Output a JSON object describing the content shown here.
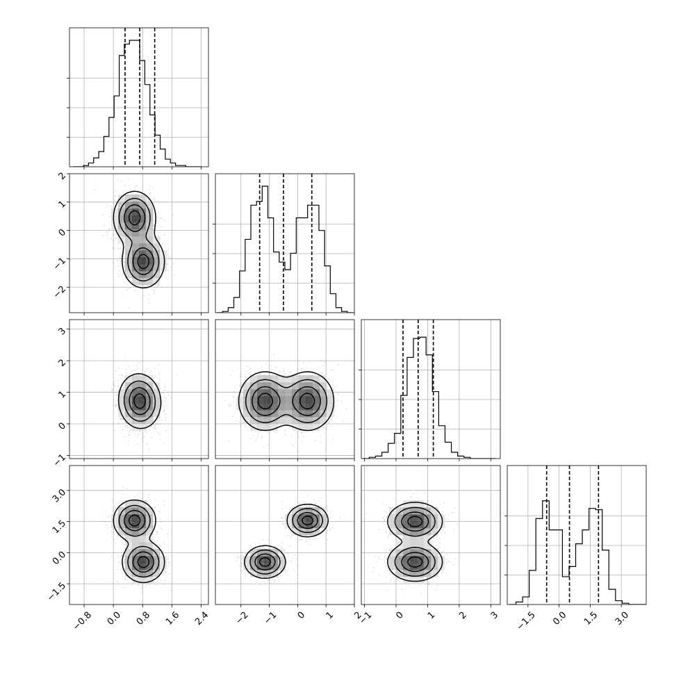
{
  "chart_data": {
    "type": "corner",
    "grid": true,
    "n_params": 4,
    "params": [
      {
        "range": [
          -1.2,
          2.6
        ],
        "ticks": [
          -0.8,
          0.0,
          0.8,
          1.6,
          2.4
        ],
        "tick_labels": [
          "−0.8",
          "0.0",
          "0.8",
          "1.6",
          "2.4"
        ]
      },
      {
        "range": [
          -2.9,
          2.0
        ],
        "ticks": [
          -2,
          -1,
          0,
          1,
          2
        ],
        "tick_labels": [
          "−2",
          "−1",
          "0",
          "1",
          "2"
        ]
      },
      {
        "range": [
          -1.1,
          3.3
        ],
        "ticks": [
          -1,
          0,
          1,
          2,
          3
        ],
        "tick_labels": [
          "−1",
          "0",
          "1",
          "2",
          "3"
        ]
      },
      {
        "range": [
          -2.5,
          4.2
        ],
        "ticks": [
          -1.5,
          0.0,
          1.5,
          3.0
        ],
        "tick_labels": [
          "−1.5",
          "0.0",
          "1.5",
          "3.0"
        ]
      }
    ],
    "quantiles": [
      [
        0.32,
        0.72,
        1.13
      ],
      [
        -1.34,
        -0.5,
        0.5
      ],
      [
        0.22,
        0.7,
        1.18
      ],
      [
        -0.6,
        0.5,
        1.9
      ]
    ],
    "histograms": [
      {
        "x_start": -1.1,
        "bin_width": 0.14,
        "counts": [
          0,
          0,
          0.01,
          0.03,
          0.07,
          0.12,
          0.24,
          0.39,
          0.56,
          0.88,
          0.97,
          1.0,
          1.0,
          0.84,
          0.65,
          0.41,
          0.25,
          0.14,
          0.06,
          0.03,
          0.01,
          0.01,
          0.0,
          0.0,
          0.0
        ]
      },
      {
        "x_start": -2.85,
        "bin_width": 0.2,
        "counts": [
          0.0,
          0.01,
          0.04,
          0.12,
          0.33,
          0.58,
          0.85,
          0.88,
          1.0,
          0.75,
          0.48,
          0.4,
          0.34,
          0.47,
          0.75,
          0.75,
          0.85,
          0.85,
          0.65,
          0.37,
          0.15,
          0.04,
          0.01,
          0.0
        ]
      },
      {
        "x_start": -1.05,
        "bin_width": 0.2,
        "counts": [
          0.0,
          0.01,
          0.02,
          0.05,
          0.12,
          0.2,
          0.5,
          0.8,
          0.95,
          0.96,
          0.82,
          0.53,
          0.26,
          0.13,
          0.05,
          0.02,
          0.01,
          0.0,
          0.0,
          0.0,
          0.0
        ]
      },
      {
        "x_start": -2.4,
        "bin_width": 0.32,
        "counts": [
          0.0,
          0.02,
          0.06,
          0.27,
          0.68,
          0.82,
          0.59,
          0.59,
          0.22,
          0.3,
          0.48,
          0.59,
          0.76,
          0.75,
          0.43,
          0.12,
          0.03,
          0.01,
          0.0,
          0.0,
          0.0
        ]
      }
    ],
    "joint_components": [
      [
        {
          "weight": 1.0,
          "mean": [
            0.72,
            0.0
          ],
          "sd": [
            0.28,
            0.0
          ],
          "rho": 0.0
        }
      ],
      [
        {
          "weight": 0.5,
          "mean": [
            0.58,
            0.45
          ],
          "sd": [
            0.28,
            0.45
          ],
          "rho": 0.0
        },
        {
          "weight": 0.5,
          "mean": [
            0.82,
            -1.1
          ],
          "sd": [
            0.28,
            0.45
          ],
          "rho": 0.0
        }
      ],
      [
        {
          "weight": 1.0,
          "mean": [
            0.72,
            0.72
          ],
          "sd": [
            0.28,
            0.42
          ],
          "rho": -0.05
        }
      ],
      [
        {
          "weight": 0.5,
          "mean": [
            0.58,
            1.55
          ],
          "sd": [
            0.28,
            0.48
          ],
          "rho": 0.0
        },
        {
          "weight": 0.5,
          "mean": [
            0.82,
            -0.45
          ],
          "sd": [
            0.28,
            0.48
          ],
          "rho": 0.0
        }
      ]
    ],
    "pair_components": {
      "2-1": [
        {
          "weight": 0.5,
          "mean": [
            -1.15,
            0.72
          ],
          "sd": [
            0.45,
            0.45
          ],
          "rho": 0.0
        },
        {
          "weight": 0.5,
          "mean": [
            0.35,
            0.72
          ],
          "sd": [
            0.45,
            0.45
          ],
          "rho": 0.0
        }
      ],
      "3-1": [
        {
          "weight": 0.5,
          "mean": [
            -1.15,
            -0.45
          ],
          "sd": [
            0.35,
            0.38
          ],
          "rho": 0.0
        },
        {
          "weight": 0.5,
          "mean": [
            0.35,
            1.55
          ],
          "sd": [
            0.35,
            0.38
          ],
          "rho": 0.0
        }
      ],
      "3-2": [
        {
          "weight": 0.5,
          "mean": [
            0.6,
            1.5
          ],
          "sd": [
            0.42,
            0.45
          ],
          "rho": 0.0
        },
        {
          "weight": 0.5,
          "mean": [
            0.6,
            -0.45
          ],
          "sd": [
            0.42,
            0.45
          ],
          "rho": 0.0
        }
      ]
    }
  }
}
